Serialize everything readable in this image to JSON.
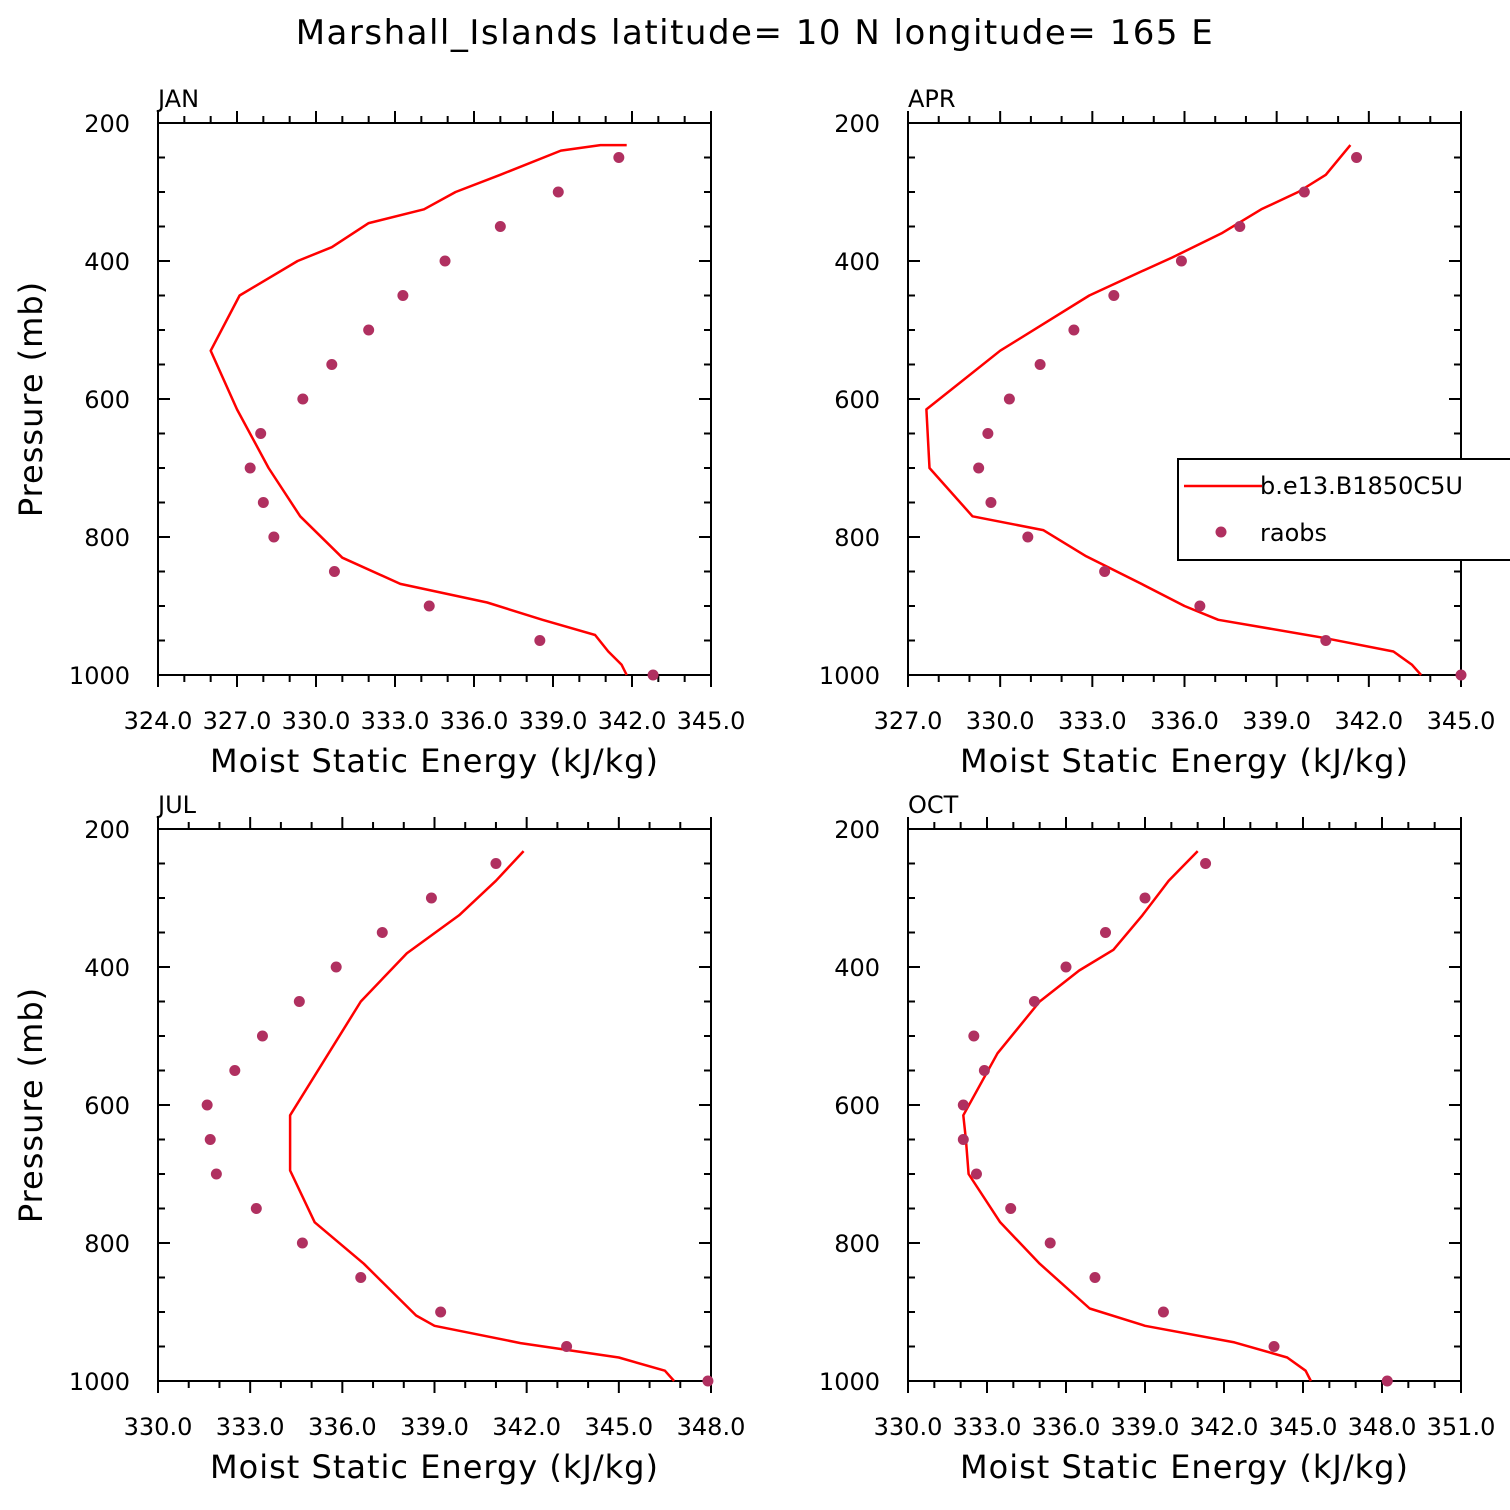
{
  "title": "Marshall_Islands  latitude= 10 N longitude= 165 E",
  "legend": {
    "model_label": "b.e13.B1850C5U",
    "obs_label": "raobs"
  },
  "colors": {
    "model": "#ff0000",
    "obs": "#b03060",
    "axes": "#000000",
    "background": "#ffffff"
  },
  "chart_data": [
    {
      "type": "line",
      "panel": "JAN",
      "title": "JAN",
      "xlabel": "Moist Static Energy (kJ/kg)",
      "ylabel": "Pressure (mb)",
      "xlim": [
        324.0,
        345.0
      ],
      "ylim": [
        1000,
        200
      ],
      "y_reversed": true,
      "xticks": [
        324.0,
        327.0,
        330.0,
        333.0,
        336.0,
        339.0,
        342.0,
        345.0
      ],
      "xtick_labels": [
        "324.0",
        "327.0",
        "330.0",
        "333.0",
        "336.0",
        "339.0",
        "342.0",
        "345.0"
      ],
      "yticks": [
        200,
        400,
        600,
        800,
        1000
      ],
      "ytick_labels": [
        "200",
        "400",
        "600",
        "800",
        "1000"
      ],
      "legend_position": "none",
      "series": [
        {
          "name": "b.e13.B1850C5U",
          "style": "line",
          "x": [
            341.8,
            341.6,
            341.1,
            340.6,
            338.6,
            336.5,
            333.2,
            331.0,
            329.4,
            328.2,
            327.0,
            326.0,
            327.1,
            329.3,
            330.6,
            332.0,
            334.1,
            335.3,
            337.0,
            339.3,
            340.8,
            341.8
          ],
          "y": [
            1000,
            985,
            966,
            942,
            920,
            895,
            868,
            830,
            770,
            700,
            615,
            530,
            450,
            400,
            380,
            345,
            325,
            300,
            275,
            240,
            232,
            232
          ]
        },
        {
          "name": "raobs",
          "style": "scatter",
          "x": [
            342.8,
            338.5,
            334.3,
            330.7,
            328.4,
            328.0,
            327.5,
            327.9,
            329.5,
            330.6,
            332.0,
            333.3,
            334.9,
            337.0,
            339.2,
            341.5
          ],
          "y": [
            1000,
            950,
            900,
            850,
            800,
            750,
            700,
            650,
            600,
            550,
            500,
            450,
            400,
            350,
            300,
            250
          ]
        }
      ]
    },
    {
      "type": "line",
      "panel": "APR",
      "title": "APR",
      "xlabel": "Moist Static Energy (kJ/kg)",
      "ylabel": "Pressure (mb)",
      "xlim": [
        327.0,
        345.0
      ],
      "ylim": [
        1000,
        200
      ],
      "y_reversed": true,
      "xticks": [
        327.0,
        330.0,
        333.0,
        336.0,
        339.0,
        342.0,
        345.0
      ],
      "xtick_labels": [
        "327.0",
        "330.0",
        "333.0",
        "336.0",
        "339.0",
        "342.0",
        "345.0"
      ],
      "yticks": [
        200,
        400,
        600,
        800,
        1000
      ],
      "ytick_labels": [
        "200",
        "400",
        "600",
        "800",
        "1000"
      ],
      "legend_position": "right",
      "series": [
        {
          "name": "b.e13.B1850C5U",
          "style": "line",
          "x": [
            343.7,
            343.4,
            342.8,
            340.5,
            337.1,
            336.0,
            334.6,
            332.8,
            331.4,
            329.1,
            327.7,
            327.6,
            330.0,
            332.9,
            334.6,
            335.6,
            337.2,
            338.5,
            339.7,
            340.6,
            341.4
          ],
          "y": [
            1000,
            985,
            966,
            946,
            920,
            900,
            868,
            828,
            790,
            770,
            700,
            615,
            530,
            450,
            415,
            395,
            360,
            325,
            300,
            275,
            232
          ]
        },
        {
          "name": "raobs",
          "style": "scatter",
          "x": [
            345.0,
            340.6,
            336.5,
            333.4,
            330.9,
            329.7,
            329.3,
            329.6,
            330.3,
            331.3,
            332.4,
            333.7,
            335.9,
            337.8,
            339.9,
            341.6
          ],
          "y": [
            1000,
            950,
            900,
            850,
            800,
            750,
            700,
            650,
            600,
            550,
            500,
            450,
            400,
            350,
            300,
            250
          ]
        }
      ]
    },
    {
      "type": "line",
      "panel": "JUL",
      "title": "JUL",
      "xlabel": "Moist Static Energy (kJ/kg)",
      "ylabel": "Pressure (mb)",
      "xlim": [
        330.0,
        348.0
      ],
      "ylim": [
        1000,
        200
      ],
      "y_reversed": true,
      "xticks": [
        330.0,
        333.0,
        336.0,
        339.0,
        342.0,
        345.0,
        348.0
      ],
      "xtick_labels": [
        "330.0",
        "333.0",
        "336.0",
        "339.0",
        "342.0",
        "345.0",
        "348.0"
      ],
      "yticks": [
        200,
        400,
        600,
        800,
        1000
      ],
      "ytick_labels": [
        "200",
        "400",
        "600",
        "800",
        "1000"
      ],
      "legend_position": "none",
      "series": [
        {
          "name": "b.e13.B1850C5U",
          "style": "line",
          "x": [
            346.8,
            346.5,
            345.0,
            341.8,
            339.0,
            338.4,
            336.7,
            335.1,
            334.3,
            334.3,
            336.6,
            338.1,
            339.8,
            341.0,
            341.9
          ],
          "y": [
            1000,
            985,
            966,
            945,
            920,
            905,
            830,
            770,
            695,
            615,
            450,
            380,
            325,
            275,
            232
          ]
        },
        {
          "name": "raobs",
          "style": "scatter",
          "x": [
            347.9,
            343.3,
            339.2,
            336.6,
            334.7,
            333.2,
            331.9,
            331.7,
            331.6,
            332.5,
            333.4,
            334.6,
            335.8,
            337.3,
            338.9,
            341.0
          ],
          "y": [
            1000,
            950,
            900,
            850,
            800,
            750,
            700,
            650,
            600,
            550,
            500,
            450,
            400,
            350,
            300,
            250
          ]
        }
      ]
    },
    {
      "type": "line",
      "panel": "OCT",
      "title": "OCT",
      "xlabel": "Moist Static Energy (kJ/kg)",
      "ylabel": "Pressure (mb)",
      "xlim": [
        330.0,
        351.0
      ],
      "ylim": [
        1000,
        200
      ],
      "y_reversed": true,
      "xticks": [
        330.0,
        333.0,
        336.0,
        339.0,
        342.0,
        345.0,
        348.0,
        351.0
      ],
      "xtick_labels": [
        "330.0",
        "333.0",
        "336.0",
        "339.0",
        "342.0",
        "345.0",
        "348.0",
        "351.0"
      ],
      "yticks": [
        200,
        400,
        600,
        800,
        1000
      ],
      "ytick_labels": [
        "200",
        "400",
        "600",
        "800",
        "1000"
      ],
      "legend_position": "none",
      "series": [
        {
          "name": "b.e13.B1850C5U",
          "style": "line",
          "x": [
            345.3,
            345.1,
            344.4,
            342.4,
            339.0,
            336.9,
            335.0,
            333.5,
            332.3,
            332.2,
            332.1,
            333.4,
            335.0,
            336.5,
            337.8,
            338.9,
            339.9,
            341.0
          ],
          "y": [
            1000,
            985,
            966,
            944,
            920,
            895,
            830,
            770,
            700,
            650,
            615,
            525,
            450,
            405,
            375,
            325,
            275,
            232
          ]
        },
        {
          "name": "raobs",
          "style": "scatter",
          "x": [
            348.2,
            343.9,
            339.7,
            337.1,
            335.4,
            333.9,
            332.6,
            332.1,
            332.1,
            332.9,
            332.5,
            334.8,
            336.0,
            337.5,
            339.0,
            341.3
          ],
          "y": [
            1000,
            950,
            900,
            850,
            800,
            750,
            700,
            650,
            600,
            550,
            500,
            450,
            400,
            350,
            300,
            250
          ]
        }
      ]
    }
  ]
}
